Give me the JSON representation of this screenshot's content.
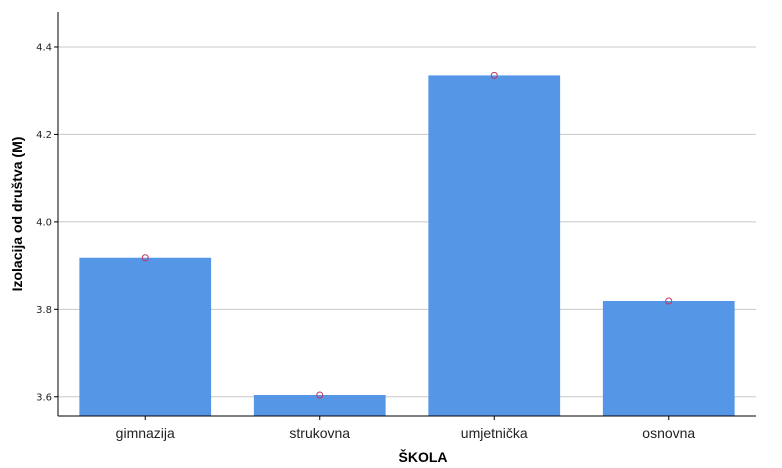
{
  "chart_data": {
    "type": "bar",
    "categories": [
      "gimnazija",
      "strukovna",
      "umjetnička",
      "osnovna"
    ],
    "values": [
      3.918,
      3.604,
      4.335,
      3.819
    ],
    "markers": [
      3.918,
      3.604,
      4.335,
      3.819
    ],
    "xlabel": "ŠKOLA",
    "ylabel": "Izolacija od društva (M)",
    "ylim": [
      3.556,
      4.48
    ],
    "yticks": [
      "3.6",
      "3.8",
      "4.0",
      "4.2",
      "4.4"
    ],
    "grid": true,
    "colors": {
      "bar": "#5596e6",
      "marker": "#c0355a",
      "grid": "#c8c8c8",
      "axis": "#000000"
    }
  }
}
